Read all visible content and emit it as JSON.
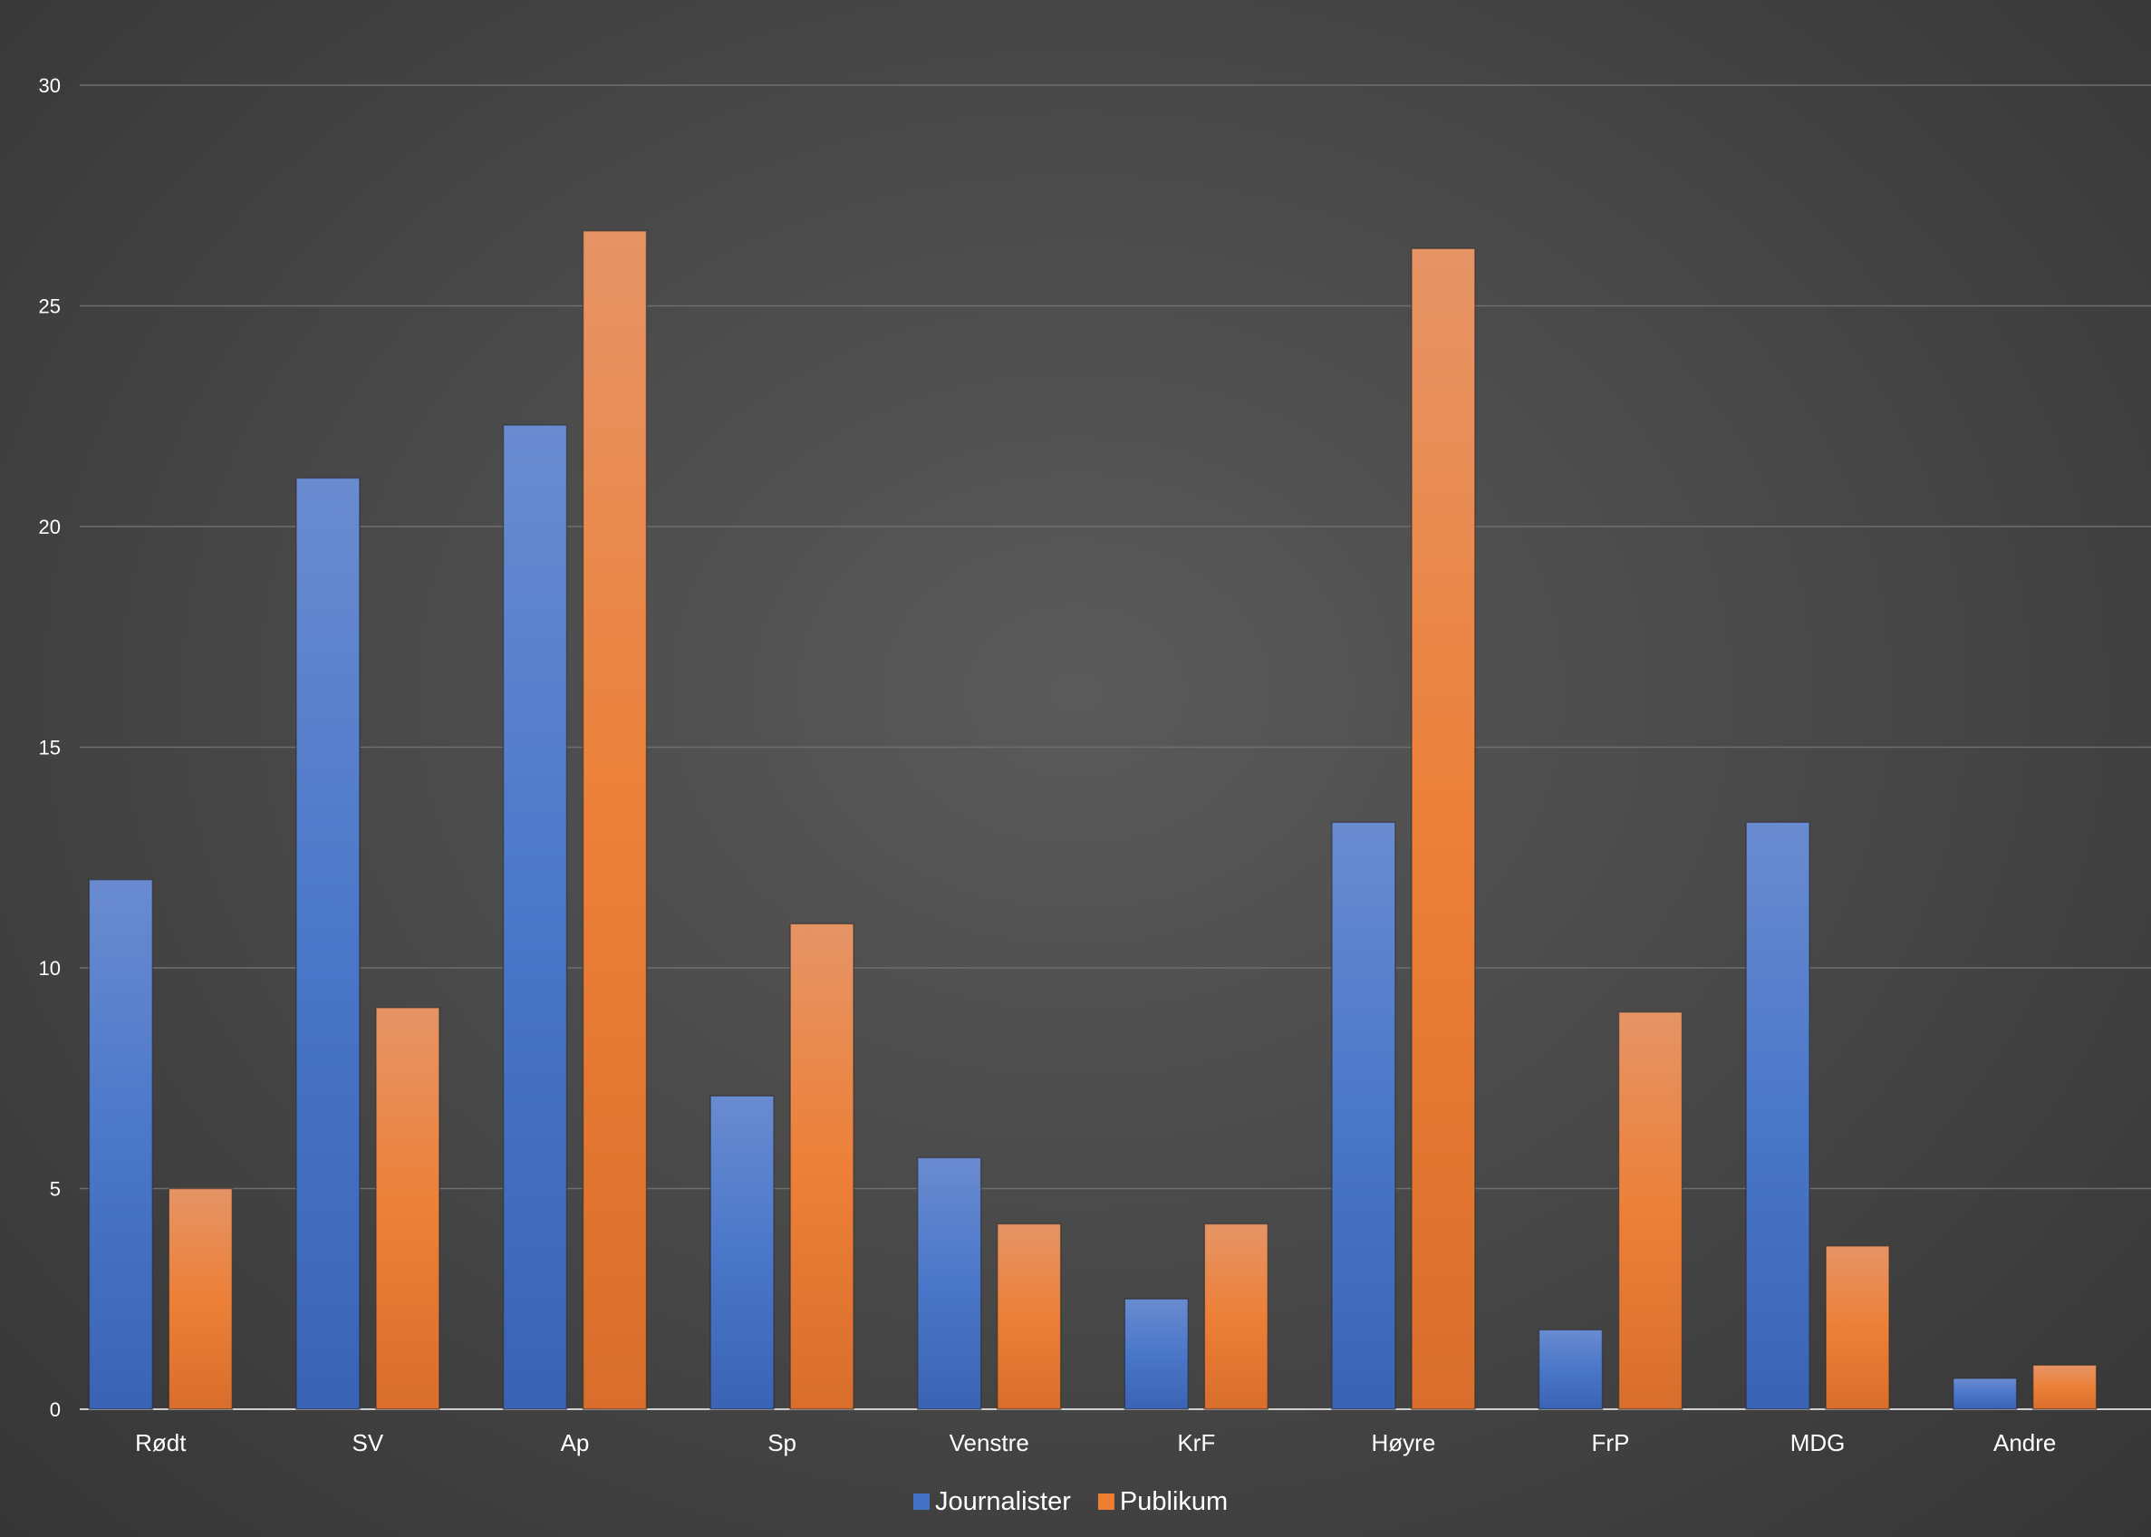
{
  "chart_data": {
    "type": "bar",
    "categories": [
      "Rødt",
      "SV",
      "Ap",
      "Sp",
      "Venstre",
      "KrF",
      "Høyre",
      "FrP",
      "MDG",
      "Andre"
    ],
    "series": [
      {
        "name": "Journalister",
        "color": "#4472c4",
        "values": [
          12.0,
          21.1,
          22.3,
          7.1,
          5.7,
          2.5,
          13.3,
          1.8,
          13.3,
          0.7
        ]
      },
      {
        "name": "Publikum",
        "color": "#ed7d31",
        "values": [
          5.0,
          9.1,
          26.7,
          11.0,
          4.2,
          4.2,
          26.3,
          9.0,
          3.7,
          1.0
        ]
      }
    ],
    "yticks": [
      "0",
      "5",
      "10",
      "15",
      "20",
      "25",
      "30"
    ],
    "ylim": [
      0,
      30
    ],
    "grid": true,
    "legend_position": "bottom"
  }
}
